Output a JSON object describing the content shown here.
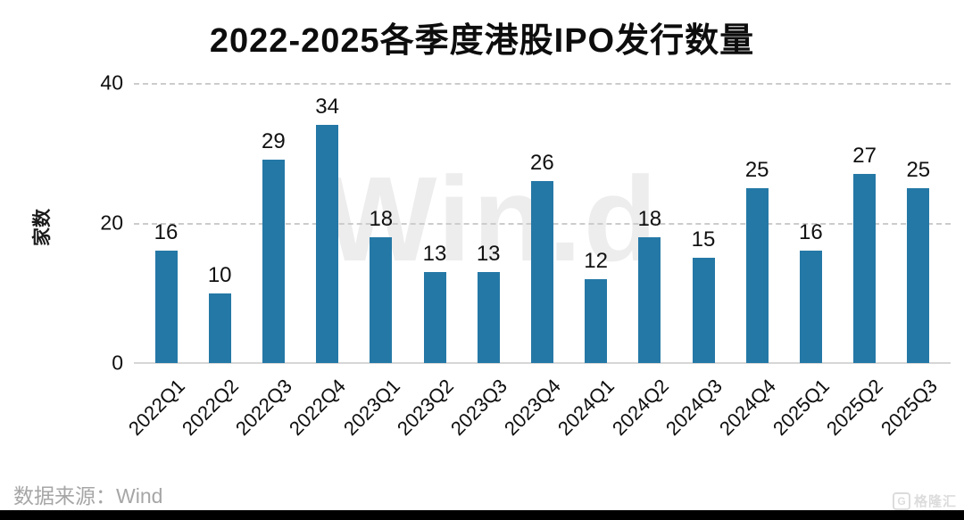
{
  "chart_data": {
    "type": "bar",
    "title": "2022-2025各季度港股IPO发行数量",
    "ylabel": "家数",
    "xlabel": "",
    "categories": [
      "2022Q1",
      "2022Q2",
      "2022Q3",
      "2022Q4",
      "2023Q1",
      "2023Q2",
      "2023Q3",
      "2023Q4",
      "2024Q1",
      "2024Q2",
      "2024Q3",
      "2024Q4",
      "2025Q1",
      "2025Q2",
      "2025Q3"
    ],
    "values": [
      16,
      10,
      29,
      34,
      18,
      13,
      13,
      26,
      12,
      18,
      15,
      25,
      16,
      27,
      25
    ],
    "ylim": [
      0,
      40
    ],
    "yticks": [
      0,
      20,
      40
    ],
    "grid": "horizontal dashed gridlines at 20 and 40, solid baseline at 0",
    "legend": "none",
    "value_labels": true,
    "colors": {
      "bar": "#2478a6",
      "gridline": "#cccccc",
      "watermark": "#ededed"
    }
  },
  "watermark": "Win.d",
  "footer": {
    "source_label": "数据来源：Wind"
  },
  "brand": {
    "logo_letter": "G",
    "logo_text": "格隆汇"
  }
}
